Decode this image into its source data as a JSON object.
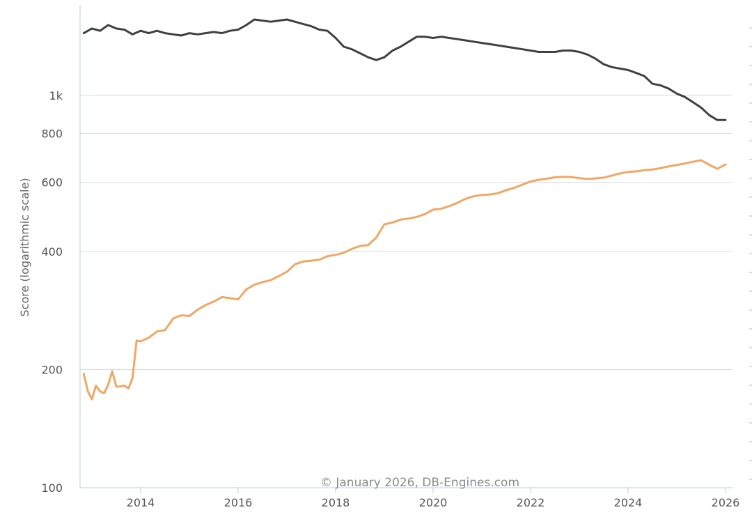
{
  "chart_data": {
    "type": "line",
    "ylabel": "Score (logarithmic scale)",
    "yscale": "log",
    "ylim": [
      100,
      1700
    ],
    "xlim": [
      "2012-11",
      "2026-01"
    ],
    "grid": true,
    "legend": "none",
    "y_ticks": [
      {
        "value": 100,
        "label": "100"
      },
      {
        "value": 200,
        "label": "200"
      },
      {
        "value": 400,
        "label": "400"
      },
      {
        "value": 600,
        "label": "600"
      },
      {
        "value": 800,
        "label": "800"
      },
      {
        "value": 1000,
        "label": "1k"
      }
    ],
    "x_ticks": [
      "2014",
      "2016",
      "2018",
      "2020",
      "2022",
      "2024",
      "2026"
    ],
    "credit": "© January 2026, DB-Engines.com",
    "series": [
      {
        "color": "#404040",
        "points": [
          [
            "2012-11",
            1440
          ],
          [
            "2013-01",
            1480
          ],
          [
            "2013-03",
            1460
          ],
          [
            "2013-05",
            1510
          ],
          [
            "2013-07",
            1480
          ],
          [
            "2013-09",
            1470
          ],
          [
            "2013-11",
            1430
          ],
          [
            "2014-01",
            1460
          ],
          [
            "2014-03",
            1440
          ],
          [
            "2014-05",
            1460
          ],
          [
            "2014-07",
            1440
          ],
          [
            "2014-09",
            1430
          ],
          [
            "2014-11",
            1420
          ],
          [
            "2015-01",
            1440
          ],
          [
            "2015-03",
            1430
          ],
          [
            "2015-05",
            1440
          ],
          [
            "2015-07",
            1450
          ],
          [
            "2015-09",
            1440
          ],
          [
            "2015-11",
            1460
          ],
          [
            "2016-01",
            1470
          ],
          [
            "2016-03",
            1510
          ],
          [
            "2016-05",
            1560
          ],
          [
            "2016-07",
            1550
          ],
          [
            "2016-09",
            1540
          ],
          [
            "2016-11",
            1550
          ],
          [
            "2017-01",
            1560
          ],
          [
            "2017-03",
            1540
          ],
          [
            "2017-05",
            1520
          ],
          [
            "2017-07",
            1500
          ],
          [
            "2017-09",
            1470
          ],
          [
            "2017-11",
            1460
          ],
          [
            "2018-01",
            1400
          ],
          [
            "2018-03",
            1330
          ],
          [
            "2018-05",
            1310
          ],
          [
            "2018-07",
            1280
          ],
          [
            "2018-09",
            1250
          ],
          [
            "2018-11",
            1230
          ],
          [
            "2019-01",
            1250
          ],
          [
            "2019-03",
            1300
          ],
          [
            "2019-05",
            1330
          ],
          [
            "2019-07",
            1370
          ],
          [
            "2019-09",
            1410
          ],
          [
            "2019-11",
            1410
          ],
          [
            "2020-01",
            1400
          ],
          [
            "2020-03",
            1410
          ],
          [
            "2020-05",
            1400
          ],
          [
            "2020-07",
            1390
          ],
          [
            "2020-09",
            1380
          ],
          [
            "2020-11",
            1370
          ],
          [
            "2021-01",
            1360
          ],
          [
            "2021-03",
            1350
          ],
          [
            "2021-05",
            1340
          ],
          [
            "2021-07",
            1330
          ],
          [
            "2021-09",
            1320
          ],
          [
            "2021-11",
            1310
          ],
          [
            "2022-01",
            1300
          ],
          [
            "2022-03",
            1290
          ],
          [
            "2022-05",
            1290
          ],
          [
            "2022-07",
            1290
          ],
          [
            "2022-09",
            1300
          ],
          [
            "2022-11",
            1300
          ],
          [
            "2023-01",
            1290
          ],
          [
            "2023-03",
            1270
          ],
          [
            "2023-05",
            1240
          ],
          [
            "2023-07",
            1200
          ],
          [
            "2023-09",
            1180
          ],
          [
            "2023-11",
            1170
          ],
          [
            "2024-01",
            1160
          ],
          [
            "2024-03",
            1140
          ],
          [
            "2024-05",
            1120
          ],
          [
            "2024-07",
            1070
          ],
          [
            "2024-09",
            1060
          ],
          [
            "2024-11",
            1040
          ],
          [
            "2025-01",
            1010
          ],
          [
            "2025-03",
            990
          ],
          [
            "2025-05",
            960
          ],
          [
            "2025-07",
            930
          ],
          [
            "2025-09",
            890
          ],
          [
            "2025-11",
            865
          ],
          [
            "2026-01",
            865
          ]
        ]
      },
      {
        "color": "#f0a764",
        "points": [
          [
            "2012-11",
            195
          ],
          [
            "2012-12",
            176
          ],
          [
            "2013-01",
            168
          ],
          [
            "2013-02",
            182
          ],
          [
            "2013-03",
            176
          ],
          [
            "2013-04",
            174
          ],
          [
            "2013-05",
            183
          ],
          [
            "2013-06",
            198
          ],
          [
            "2013-07",
            181
          ],
          [
            "2013-08",
            181
          ],
          [
            "2013-09",
            182
          ],
          [
            "2013-10",
            179
          ],
          [
            "2013-11",
            190
          ],
          [
            "2013-12",
            237
          ],
          [
            "2014-01",
            236
          ],
          [
            "2014-03",
            241
          ],
          [
            "2014-05",
            250
          ],
          [
            "2014-07",
            252
          ],
          [
            "2014-09",
            270
          ],
          [
            "2014-11",
            275
          ],
          [
            "2015-01",
            274
          ],
          [
            "2015-03",
            284
          ],
          [
            "2015-05",
            292
          ],
          [
            "2015-07",
            298
          ],
          [
            "2015-09",
            306
          ],
          [
            "2015-11",
            304
          ],
          [
            "2016-01",
            302
          ],
          [
            "2016-03",
            320
          ],
          [
            "2016-05",
            329
          ],
          [
            "2016-07",
            334
          ],
          [
            "2016-09",
            338
          ],
          [
            "2016-11",
            346
          ],
          [
            "2017-01",
            355
          ],
          [
            "2017-03",
            371
          ],
          [
            "2017-05",
            377
          ],
          [
            "2017-07",
            379
          ],
          [
            "2017-09",
            381
          ],
          [
            "2017-11",
            389
          ],
          [
            "2018-01",
            392
          ],
          [
            "2018-03",
            397
          ],
          [
            "2018-05",
            406
          ],
          [
            "2018-07",
            413
          ],
          [
            "2018-09",
            415
          ],
          [
            "2018-11",
            434
          ],
          [
            "2019-01",
            469
          ],
          [
            "2019-03",
            474
          ],
          [
            "2019-05",
            482
          ],
          [
            "2019-07",
            485
          ],
          [
            "2019-09",
            490
          ],
          [
            "2019-11",
            498
          ],
          [
            "2020-01",
            511
          ],
          [
            "2020-03",
            514
          ],
          [
            "2020-05",
            522
          ],
          [
            "2020-07",
            532
          ],
          [
            "2020-09",
            545
          ],
          [
            "2020-11",
            553
          ],
          [
            "2021-01",
            557
          ],
          [
            "2021-03",
            559
          ],
          [
            "2021-05",
            563
          ],
          [
            "2021-07",
            573
          ],
          [
            "2021-09",
            581
          ],
          [
            "2021-11",
            592
          ],
          [
            "2022-01",
            603
          ],
          [
            "2022-03",
            609
          ],
          [
            "2022-05",
            613
          ],
          [
            "2022-07",
            618
          ],
          [
            "2022-09",
            620
          ],
          [
            "2022-11",
            619
          ],
          [
            "2023-01",
            615
          ],
          [
            "2023-03",
            612
          ],
          [
            "2023-05",
            614
          ],
          [
            "2023-07",
            617
          ],
          [
            "2023-09",
            624
          ],
          [
            "2023-11",
            632
          ],
          [
            "2024-01",
            638
          ],
          [
            "2024-03",
            640
          ],
          [
            "2024-05",
            644
          ],
          [
            "2024-07",
            647
          ],
          [
            "2024-09",
            652
          ],
          [
            "2024-11",
            659
          ],
          [
            "2025-01",
            664
          ],
          [
            "2025-03",
            670
          ],
          [
            "2025-05",
            677
          ],
          [
            "2025-07",
            683
          ],
          [
            "2025-09",
            665
          ],
          [
            "2025-11",
            650
          ],
          [
            "2026-01",
            666
          ]
        ]
      }
    ]
  }
}
